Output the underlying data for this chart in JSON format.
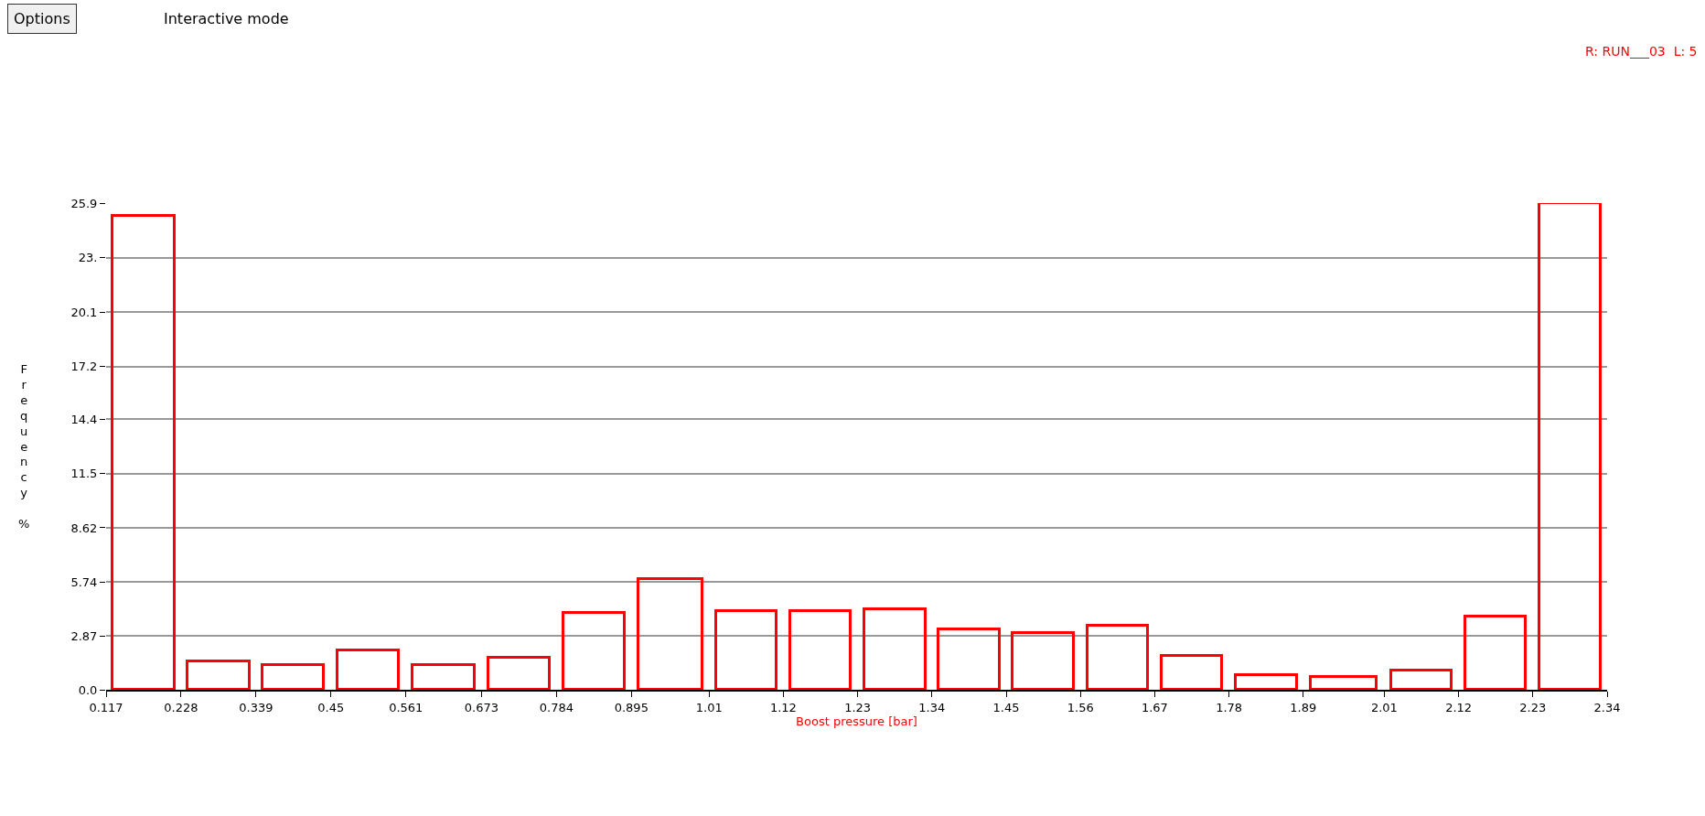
{
  "chart_data": {
    "type": "histogram",
    "xlabel": "Boost pressure [bar]",
    "ylabel": "Frequency %",
    "color": "#ff0000",
    "bins": [
      0.117,
      0.228,
      0.339,
      0.45,
      0.561,
      0.673,
      0.784,
      0.895,
      1.01,
      1.12,
      1.23,
      1.34,
      1.45,
      1.56,
      1.67,
      1.78,
      1.89,
      2.01,
      2.12,
      2.23,
      2.34
    ],
    "values": [
      25.2,
      1.5,
      1.3,
      2.1,
      1.3,
      1.7,
      4.1,
      5.9,
      4.2,
      4.2,
      4.3,
      3.2,
      3.0,
      3.4,
      1.8,
      0.8,
      0.7,
      1.0,
      3.9,
      25.9
    ],
    "xlim": [
      0.117,
      2.34
    ],
    "xticks": [
      0.117,
      0.228,
      0.339,
      0.45,
      0.561,
      0.673,
      0.784,
      0.895,
      1.01,
      1.12,
      1.23,
      1.34,
      1.45,
      1.56,
      1.67,
      1.78,
      1.89,
      2.01,
      2.12,
      2.23,
      2.34
    ],
    "ylim": [
      0,
      25.9
    ],
    "yticks": [
      {
        "value": 0,
        "label": "0.0"
      },
      2.87,
      5.74,
      8.62,
      11.5,
      14.4,
      17.2,
      20.1,
      {
        "value": 23,
        "label": "23."
      },
      25.9
    ],
    "grid": "y",
    "legend": false,
    "annotations": [
      "Options",
      "Interactive mode",
      "R: RUN___03  L: 5"
    ]
  }
}
